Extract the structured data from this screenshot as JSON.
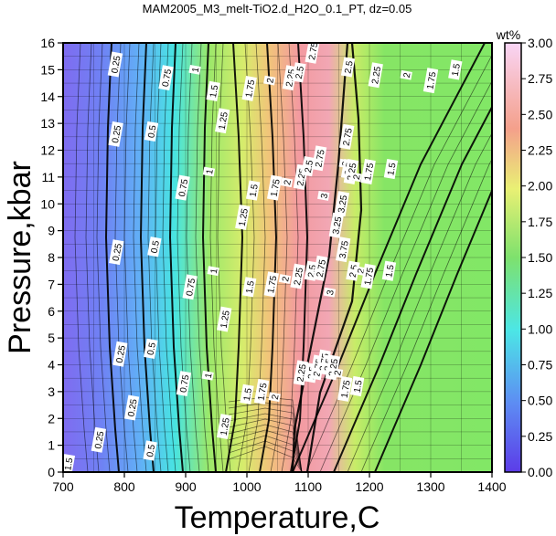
{
  "chart_data": {
    "type": "heatmap",
    "title": "MAM2005_M3_melt-TiO2.d_H2O_0.1_PT, dz=0.05",
    "xlabel": "Temperature,C",
    "ylabel": "Pressure,kbar",
    "xlim": [
      700,
      1400
    ],
    "ylim": [
      0,
      16
    ],
    "x_ticks": [
      "700",
      "800",
      "900",
      "1000",
      "1100",
      "1200",
      "1300",
      "1400"
    ],
    "y_ticks": [
      "0",
      "1",
      "2",
      "3",
      "4",
      "5",
      "6",
      "7",
      "8",
      "9",
      "10",
      "11",
      "12",
      "13",
      "14",
      "15",
      "16"
    ],
    "grid": true,
    "colorbar": {
      "label": "wt%",
      "range": [
        0,
        3
      ],
      "ticks": [
        "0.00",
        "0.25",
        "0.50",
        "0.75",
        "1.00",
        "1.25",
        "1.50",
        "1.75",
        "2.00",
        "2.25",
        "2.50",
        "2.75",
        "3.00"
      ]
    },
    "contour_interval": 0.05,
    "contour_labels": [
      {
        "text": "0.25",
        "x": 785,
        "y": 15.2
      },
      {
        "text": "0.25",
        "x": 786,
        "y": 12.6
      },
      {
        "text": "0.25",
        "x": 787,
        "y": 8.2
      },
      {
        "text": "0.25",
        "x": 793,
        "y": 4.4
      },
      {
        "text": "0.25",
        "x": 812,
        "y": 2.4
      },
      {
        "text": "0.25",
        "x": 758,
        "y": 1.2
      },
      {
        "text": "0.5",
        "x": 844,
        "y": 12.7
      },
      {
        "text": "0.5",
        "x": 849,
        "y": 8.4
      },
      {
        "text": "0.5",
        "x": 843,
        "y": 4.6
      },
      {
        "text": "0.5",
        "x": 842,
        "y": 0.8
      },
      {
        "text": "0.75",
        "x": 868,
        "y": 14.7
      },
      {
        "text": "0.75",
        "x": 895,
        "y": 10.6
      },
      {
        "text": "0.75",
        "x": 907,
        "y": 6.9
      },
      {
        "text": "0.75",
        "x": 897,
        "y": 3.3
      },
      {
        "text": "1",
        "x": 915,
        "y": 15.0
      },
      {
        "text": "1",
        "x": 938,
        "y": 11.2
      },
      {
        "text": "1",
        "x": 945,
        "y": 7.5
      },
      {
        "text": "1",
        "x": 936,
        "y": 3.6
      },
      {
        "text": "1.5",
        "x": 945,
        "y": 14.2
      },
      {
        "text": "1.25",
        "x": 960,
        "y": 13.1
      },
      {
        "text": "1.25",
        "x": 993,
        "y": 9.5
      },
      {
        "text": "1.25",
        "x": 963,
        "y": 5.7
      },
      {
        "text": "1.25",
        "x": 963,
        "y": 1.7
      },
      {
        "text": "1.5",
        "x": 1010,
        "y": 10.5
      },
      {
        "text": "1.5",
        "x": 1004,
        "y": 6.9
      },
      {
        "text": "1.5",
        "x": 1000,
        "y": 2.9
      },
      {
        "text": "1.75",
        "x": 1004,
        "y": 14.3
      },
      {
        "text": "1.75",
        "x": 1045,
        "y": 10.6
      },
      {
        "text": "1.75",
        "x": 1040,
        "y": 7.0
      },
      {
        "text": "1.75",
        "x": 1024,
        "y": 3.0
      },
      {
        "text": "2",
        "x": 1037,
        "y": 14.6
      },
      {
        "text": "2",
        "x": 1065,
        "y": 10.8
      },
      {
        "text": "2",
        "x": 1062,
        "y": 7.2
      },
      {
        "text": "2",
        "x": 1045,
        "y": 2.8
      },
      {
        "text": "2.25",
        "x": 1070,
        "y": 14.7
      },
      {
        "text": "2.25",
        "x": 1088,
        "y": 11.0
      },
      {
        "text": "2.25",
        "x": 1083,
        "y": 7.3
      },
      {
        "text": "2.25",
        "x": 1088,
        "y": 3.7
      },
      {
        "text": "2.5",
        "x": 1085,
        "y": 14.9
      },
      {
        "text": "2.5",
        "x": 1100,
        "y": 11.4
      },
      {
        "text": "2.5",
        "x": 1105,
        "y": 7.5
      },
      {
        "text": "2.5",
        "x": 1105,
        "y": 3.7
      },
      {
        "text": "2.75",
        "x": 1107,
        "y": 15.7
      },
      {
        "text": "2.75",
        "x": 1118,
        "y": 11.7
      },
      {
        "text": "2.75",
        "x": 1120,
        "y": 7.6
      },
      {
        "text": "2.75",
        "x": 1115,
        "y": 3.9
      },
      {
        "text": "3",
        "x": 1125,
        "y": 10.3
      },
      {
        "text": "3",
        "x": 1135,
        "y": 6.7
      },
      {
        "text": "3.25",
        "x": 1146,
        "y": 9.2
      },
      {
        "text": "3.25",
        "x": 1155,
        "y": 10.0
      },
      {
        "text": "3.75",
        "x": 1157,
        "y": 8.3
      },
      {
        "text": "3",
        "x": 1160,
        "y": 11.5
      },
      {
        "text": "2.75",
        "x": 1163,
        "y": 12.5
      },
      {
        "text": "2.5",
        "x": 1165,
        "y": 11.3
      },
      {
        "text": "2.25",
        "x": 1170,
        "y": 11.2
      },
      {
        "text": "2.5",
        "x": 1173,
        "y": 7.5
      },
      {
        "text": "2",
        "x": 1178,
        "y": 11.0
      },
      {
        "text": "2",
        "x": 1185,
        "y": 7.5
      },
      {
        "text": "1.75",
        "x": 1198,
        "y": 11.2
      },
      {
        "text": "1.75",
        "x": 1198,
        "y": 7.3
      },
      {
        "text": "1.75",
        "x": 1160,
        "y": 3.1
      },
      {
        "text": "1.5",
        "x": 1235,
        "y": 11.3
      },
      {
        "text": "1.5",
        "x": 1232,
        "y": 7.5
      },
      {
        "text": "1.5",
        "x": 1180,
        "y": 3.2
      },
      {
        "text": "2.5",
        "x": 1165,
        "y": 15.1
      },
      {
        "text": "2.25",
        "x": 1210,
        "y": 14.8
      },
      {
        "text": "2",
        "x": 1260,
        "y": 14.8
      },
      {
        "text": "1.75",
        "x": 1300,
        "y": 14.6
      },
      {
        "text": "1.5",
        "x": 1340,
        "y": 15.0
      },
      {
        "text": "2.75",
        "x": 1125,
        "y": 4.1
      },
      {
        "text": "2.5",
        "x": 1132,
        "y": 4.0
      },
      {
        "text": "2.25",
        "x": 1140,
        "y": 3.9
      },
      {
        "text": "2",
        "x": 1147,
        "y": 3.7
      },
      {
        "text": "1.5",
        "x": 708,
        "y": 0.3
      }
    ]
  }
}
